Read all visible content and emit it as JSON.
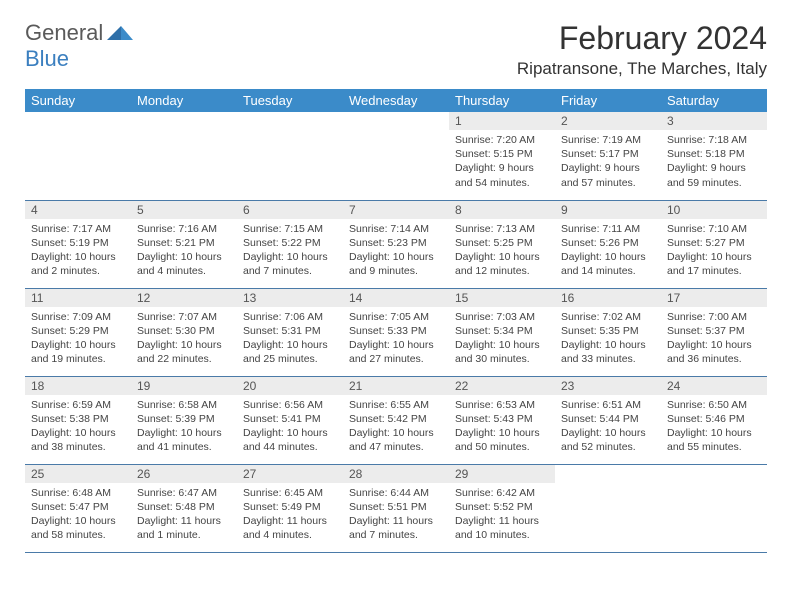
{
  "logo": {
    "textGeneral": "General",
    "textBlue": "Blue"
  },
  "title": "February 2024",
  "location": "Ripatransone, The Marches, Italy",
  "colors": {
    "headerBar": "#3b8bc9",
    "headerText": "#ffffff",
    "dayNumBg": "#ececec",
    "rowDivider": "#4a7aa8",
    "bodyText": "#444444",
    "logoBlue": "#3b7fbf",
    "logoGray": "#5a5a5a"
  },
  "dayNames": [
    "Sunday",
    "Monday",
    "Tuesday",
    "Wednesday",
    "Thursday",
    "Friday",
    "Saturday"
  ],
  "weeks": [
    [
      {
        "empty": true
      },
      {
        "empty": true
      },
      {
        "empty": true
      },
      {
        "empty": true
      },
      {
        "num": "1",
        "sunrise": "Sunrise: 7:20 AM",
        "sunset": "Sunset: 5:15 PM",
        "daylight": "Daylight: 9 hours and 54 minutes."
      },
      {
        "num": "2",
        "sunrise": "Sunrise: 7:19 AM",
        "sunset": "Sunset: 5:17 PM",
        "daylight": "Daylight: 9 hours and 57 minutes."
      },
      {
        "num": "3",
        "sunrise": "Sunrise: 7:18 AM",
        "sunset": "Sunset: 5:18 PM",
        "daylight": "Daylight: 9 hours and 59 minutes."
      }
    ],
    [
      {
        "num": "4",
        "sunrise": "Sunrise: 7:17 AM",
        "sunset": "Sunset: 5:19 PM",
        "daylight": "Daylight: 10 hours and 2 minutes."
      },
      {
        "num": "5",
        "sunrise": "Sunrise: 7:16 AM",
        "sunset": "Sunset: 5:21 PM",
        "daylight": "Daylight: 10 hours and 4 minutes."
      },
      {
        "num": "6",
        "sunrise": "Sunrise: 7:15 AM",
        "sunset": "Sunset: 5:22 PM",
        "daylight": "Daylight: 10 hours and 7 minutes."
      },
      {
        "num": "7",
        "sunrise": "Sunrise: 7:14 AM",
        "sunset": "Sunset: 5:23 PM",
        "daylight": "Daylight: 10 hours and 9 minutes."
      },
      {
        "num": "8",
        "sunrise": "Sunrise: 7:13 AM",
        "sunset": "Sunset: 5:25 PM",
        "daylight": "Daylight: 10 hours and 12 minutes."
      },
      {
        "num": "9",
        "sunrise": "Sunrise: 7:11 AM",
        "sunset": "Sunset: 5:26 PM",
        "daylight": "Daylight: 10 hours and 14 minutes."
      },
      {
        "num": "10",
        "sunrise": "Sunrise: 7:10 AM",
        "sunset": "Sunset: 5:27 PM",
        "daylight": "Daylight: 10 hours and 17 minutes."
      }
    ],
    [
      {
        "num": "11",
        "sunrise": "Sunrise: 7:09 AM",
        "sunset": "Sunset: 5:29 PM",
        "daylight": "Daylight: 10 hours and 19 minutes."
      },
      {
        "num": "12",
        "sunrise": "Sunrise: 7:07 AM",
        "sunset": "Sunset: 5:30 PM",
        "daylight": "Daylight: 10 hours and 22 minutes."
      },
      {
        "num": "13",
        "sunrise": "Sunrise: 7:06 AM",
        "sunset": "Sunset: 5:31 PM",
        "daylight": "Daylight: 10 hours and 25 minutes."
      },
      {
        "num": "14",
        "sunrise": "Sunrise: 7:05 AM",
        "sunset": "Sunset: 5:33 PM",
        "daylight": "Daylight: 10 hours and 27 minutes."
      },
      {
        "num": "15",
        "sunrise": "Sunrise: 7:03 AM",
        "sunset": "Sunset: 5:34 PM",
        "daylight": "Daylight: 10 hours and 30 minutes."
      },
      {
        "num": "16",
        "sunrise": "Sunrise: 7:02 AM",
        "sunset": "Sunset: 5:35 PM",
        "daylight": "Daylight: 10 hours and 33 minutes."
      },
      {
        "num": "17",
        "sunrise": "Sunrise: 7:00 AM",
        "sunset": "Sunset: 5:37 PM",
        "daylight": "Daylight: 10 hours and 36 minutes."
      }
    ],
    [
      {
        "num": "18",
        "sunrise": "Sunrise: 6:59 AM",
        "sunset": "Sunset: 5:38 PM",
        "daylight": "Daylight: 10 hours and 38 minutes."
      },
      {
        "num": "19",
        "sunrise": "Sunrise: 6:58 AM",
        "sunset": "Sunset: 5:39 PM",
        "daylight": "Daylight: 10 hours and 41 minutes."
      },
      {
        "num": "20",
        "sunrise": "Sunrise: 6:56 AM",
        "sunset": "Sunset: 5:41 PM",
        "daylight": "Daylight: 10 hours and 44 minutes."
      },
      {
        "num": "21",
        "sunrise": "Sunrise: 6:55 AM",
        "sunset": "Sunset: 5:42 PM",
        "daylight": "Daylight: 10 hours and 47 minutes."
      },
      {
        "num": "22",
        "sunrise": "Sunrise: 6:53 AM",
        "sunset": "Sunset: 5:43 PM",
        "daylight": "Daylight: 10 hours and 50 minutes."
      },
      {
        "num": "23",
        "sunrise": "Sunrise: 6:51 AM",
        "sunset": "Sunset: 5:44 PM",
        "daylight": "Daylight: 10 hours and 52 minutes."
      },
      {
        "num": "24",
        "sunrise": "Sunrise: 6:50 AM",
        "sunset": "Sunset: 5:46 PM",
        "daylight": "Daylight: 10 hours and 55 minutes."
      }
    ],
    [
      {
        "num": "25",
        "sunrise": "Sunrise: 6:48 AM",
        "sunset": "Sunset: 5:47 PM",
        "daylight": "Daylight: 10 hours and 58 minutes."
      },
      {
        "num": "26",
        "sunrise": "Sunrise: 6:47 AM",
        "sunset": "Sunset: 5:48 PM",
        "daylight": "Daylight: 11 hours and 1 minute."
      },
      {
        "num": "27",
        "sunrise": "Sunrise: 6:45 AM",
        "sunset": "Sunset: 5:49 PM",
        "daylight": "Daylight: 11 hours and 4 minutes."
      },
      {
        "num": "28",
        "sunrise": "Sunrise: 6:44 AM",
        "sunset": "Sunset: 5:51 PM",
        "daylight": "Daylight: 11 hours and 7 minutes."
      },
      {
        "num": "29",
        "sunrise": "Sunrise: 6:42 AM",
        "sunset": "Sunset: 5:52 PM",
        "daylight": "Daylight: 11 hours and 10 minutes."
      },
      {
        "empty": true
      },
      {
        "empty": true
      }
    ]
  ]
}
